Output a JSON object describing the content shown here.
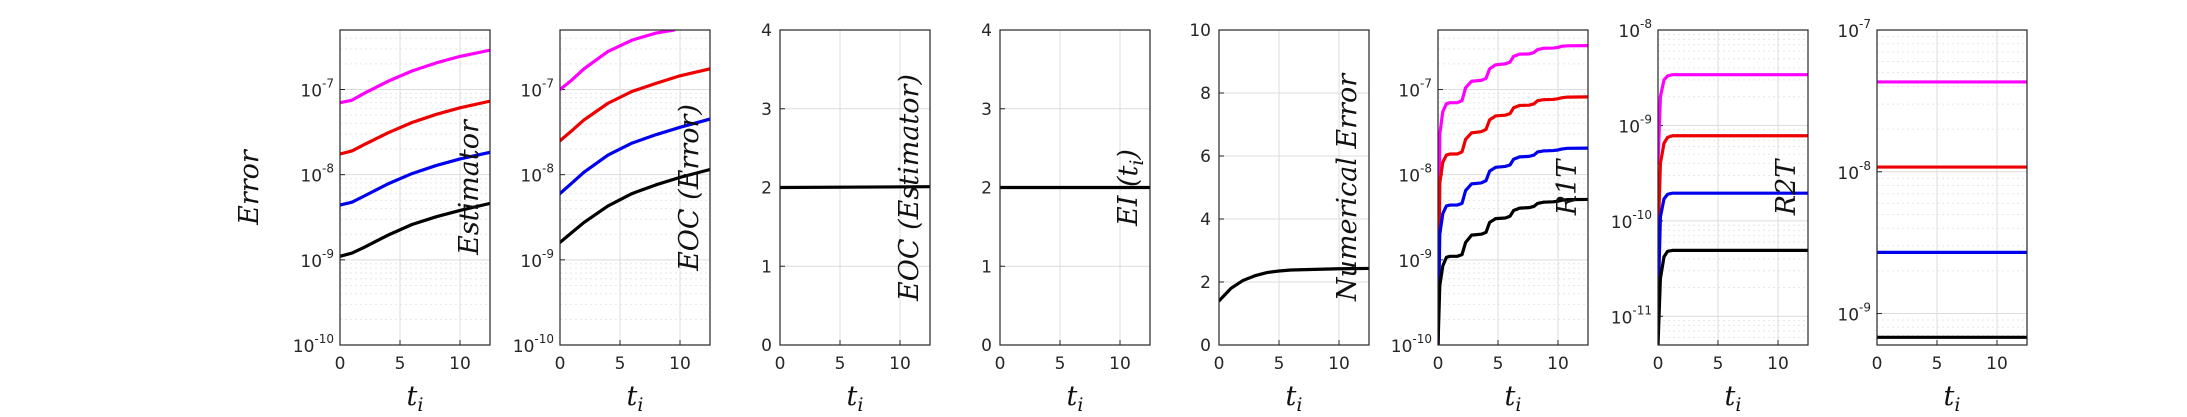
{
  "colors": {
    "magenta": "#ff00ff",
    "red": "#ee0000",
    "blue": "#0000ee",
    "black": "#000000"
  },
  "chart_data": [
    {
      "type": "line",
      "yscale": "log",
      "ylim": [
        1e-10,
        5e-07
      ],
      "xlim": [
        0,
        12.5
      ],
      "xticks": [
        0,
        5,
        10
      ],
      "xlabel": "t",
      "xlabel_sub": "i",
      "ylabel": "Error",
      "yticks": [
        {
          "v": 1e-10,
          "base": "10",
          "exp": "-10"
        },
        {
          "v": 1e-09,
          "base": "10",
          "exp": "-9"
        },
        {
          "v": 1e-08,
          "base": "10",
          "exp": "-8"
        },
        {
          "v": 1e-07,
          "base": "10",
          "exp": "-7"
        }
      ],
      "series": [
        {
          "color": "magenta",
          "x": [
            0,
            1,
            2,
            4,
            6,
            8,
            10,
            12.5
          ],
          "y": [
            7e-08,
            7.5e-08,
            9e-08,
            1.25e-07,
            1.65e-07,
            2.05e-07,
            2.45e-07,
            2.9e-07
          ]
        },
        {
          "color": "red",
          "x": [
            0,
            1,
            2,
            4,
            6,
            8,
            10,
            12.5
          ],
          "y": [
            1.75e-08,
            1.9e-08,
            2.25e-08,
            3.1e-08,
            4.1e-08,
            5.1e-08,
            6.1e-08,
            7.3e-08
          ]
        },
        {
          "color": "blue",
          "x": [
            0,
            1,
            2,
            4,
            6,
            8,
            10,
            12.5
          ],
          "y": [
            4.4e-09,
            4.75e-09,
            5.6e-09,
            7.8e-09,
            1.03e-08,
            1.28e-08,
            1.53e-08,
            1.83e-08
          ]
        },
        {
          "color": "black",
          "x": [
            0,
            1,
            2,
            4,
            6,
            8,
            10,
            12.5
          ],
          "y": [
            1.1e-09,
            1.2e-09,
            1.4e-09,
            1.95e-09,
            2.6e-09,
            3.2e-09,
            3.8e-09,
            4.6e-09
          ]
        }
      ]
    },
    {
      "type": "line",
      "yscale": "log",
      "ylim": [
        1e-10,
        5e-07
      ],
      "xlim": [
        0,
        12.5
      ],
      "xticks": [
        0,
        5,
        10
      ],
      "xlabel": "t",
      "xlabel_sub": "i",
      "ylabel": "Estimator",
      "yticks": [
        {
          "v": 1e-10,
          "base": "10",
          "exp": "-10"
        },
        {
          "v": 1e-09,
          "base": "10",
          "exp": "-9"
        },
        {
          "v": 1e-08,
          "base": "10",
          "exp": "-8"
        },
        {
          "v": 1e-07,
          "base": "10",
          "exp": "-7"
        }
      ],
      "series": [
        {
          "color": "magenta",
          "x": [
            0,
            1,
            2,
            4,
            6,
            8,
            9.5
          ],
          "y": [
            1e-07,
            1.3e-07,
            1.75e-07,
            2.8e-07,
            3.8e-07,
            4.6e-07,
            5e-07
          ]
        },
        {
          "color": "red",
          "x": [
            0,
            1,
            2,
            4,
            6,
            8,
            10,
            12.5
          ],
          "y": [
            2.5e-08,
            3.3e-08,
            4.4e-08,
            6.9e-08,
            9.5e-08,
            1.18e-07,
            1.45e-07,
            1.75e-07
          ]
        },
        {
          "color": "blue",
          "x": [
            0,
            1,
            2,
            4,
            6,
            8,
            10,
            12.5
          ],
          "y": [
            6e-09,
            8e-09,
            1.07e-08,
            1.7e-08,
            2.35e-08,
            2.95e-08,
            3.6e-08,
            4.5e-08
          ]
        },
        {
          "color": "black",
          "x": [
            0,
            1,
            2,
            4,
            6,
            8,
            10,
            12.5
          ],
          "y": [
            1.6e-09,
            2.1e-09,
            2.75e-09,
            4.3e-09,
            6e-09,
            7.6e-09,
            9.3e-09,
            1.15e-08
          ]
        }
      ]
    },
    {
      "type": "line",
      "yscale": "linear",
      "ylim": [
        0,
        4
      ],
      "xlim": [
        0,
        12.5
      ],
      "xticks": [
        0,
        5,
        10
      ],
      "xlabel": "t",
      "xlabel_sub": "i",
      "ylabel": "EOC (Error)",
      "yticks": [
        {
          "v": 0,
          "base": "0"
        },
        {
          "v": 1,
          "base": "1"
        },
        {
          "v": 2,
          "base": "2"
        },
        {
          "v": 3,
          "base": "3"
        },
        {
          "v": 4,
          "base": "4"
        }
      ],
      "series": [
        {
          "color": "black",
          "x": [
            0,
            12.5
          ],
          "y": [
            2.0,
            2.01
          ]
        }
      ]
    },
    {
      "type": "line",
      "yscale": "linear",
      "ylim": [
        0,
        4
      ],
      "xlim": [
        0,
        12.5
      ],
      "xticks": [
        0,
        5,
        10
      ],
      "xlabel": "t",
      "xlabel_sub": "i",
      "ylabel": "EOC (Estimator)",
      "yticks": [
        {
          "v": 0,
          "base": "0"
        },
        {
          "v": 1,
          "base": "1"
        },
        {
          "v": 2,
          "base": "2"
        },
        {
          "v": 3,
          "base": "3"
        },
        {
          "v": 4,
          "base": "4"
        }
      ],
      "series": [
        {
          "color": "black",
          "x": [
            0,
            12.5
          ],
          "y": [
            2.0,
            2.0
          ]
        }
      ]
    },
    {
      "type": "line",
      "yscale": "linear",
      "ylim": [
        0,
        10
      ],
      "xlim": [
        0,
        12.5
      ],
      "xticks": [
        0,
        5,
        10
      ],
      "xlabel": "t",
      "xlabel_sub": "i",
      "ylabel": "EI (t",
      "ylabel_sub": "i",
      "ylabel_tail": ")",
      "yticks": [
        {
          "v": 0,
          "base": "0"
        },
        {
          "v": 2,
          "base": "2"
        },
        {
          "v": 4,
          "base": "4"
        },
        {
          "v": 6,
          "base": "6"
        },
        {
          "v": 8,
          "base": "8"
        },
        {
          "v": 10,
          "base": "10"
        }
      ],
      "series": [
        {
          "color": "black",
          "x": [
            0,
            0.5,
            1,
            2,
            3,
            4,
            5,
            6,
            8,
            10,
            12.5
          ],
          "y": [
            1.4,
            1.6,
            1.8,
            2.05,
            2.2,
            2.3,
            2.35,
            2.38,
            2.4,
            2.42,
            2.43
          ]
        }
      ]
    },
    {
      "type": "line",
      "yscale": "log",
      "ylim": [
        1e-10,
        5e-07
      ],
      "xlim": [
        0,
        12.5
      ],
      "xticks": [
        0,
        5,
        10
      ],
      "xlabel": "t",
      "xlabel_sub": "i",
      "ylabel": "Numerical Error",
      "yticks": [
        {
          "v": 1e-10,
          "base": "10",
          "exp": "-10"
        },
        {
          "v": 1e-09,
          "base": "10",
          "exp": "-9"
        },
        {
          "v": 1e-08,
          "base": "10",
          "exp": "-8"
        },
        {
          "v": 1e-07,
          "base": "10",
          "exp": "-7"
        }
      ],
      "series": [
        {
          "color": "magenta",
          "x": [
            0,
            0.15,
            0.4,
            0.7,
            1,
            1.6,
            2,
            2.3,
            2.8,
            3.6,
            4,
            4.3,
            4.8,
            5.6,
            6,
            6.3,
            6.8,
            7.6,
            8,
            8.3,
            8.8,
            9.6,
            10,
            10.3,
            10.8,
            12.5
          ],
          "y": [
            1e-10,
            3e-08,
            5.5e-08,
            6.8e-08,
            7e-08,
            7e-08,
            7.4e-08,
            1.05e-07,
            1.25e-07,
            1.28e-07,
            1.35e-07,
            1.75e-07,
            1.95e-07,
            2e-07,
            2.1e-07,
            2.45e-07,
            2.6e-07,
            2.62e-07,
            2.72e-07,
            2.95e-07,
            3.05e-07,
            3.07e-07,
            3.12e-07,
            3.22e-07,
            3.26e-07,
            3.28e-07
          ]
        },
        {
          "color": "red",
          "x": [
            0,
            0.15,
            0.4,
            0.7,
            1,
            1.6,
            2,
            2.3,
            2.8,
            3.6,
            4,
            4.3,
            4.8,
            5.6,
            6,
            6.3,
            6.8,
            7.6,
            8,
            8.3,
            8.8,
            9.6,
            10,
            10.3,
            10.8,
            12.5
          ],
          "y": [
            1e-10,
            8e-09,
            1.4e-08,
            1.7e-08,
            1.75e-08,
            1.75e-08,
            1.85e-08,
            2.6e-08,
            3.1e-08,
            3.2e-08,
            3.4e-08,
            4.4e-08,
            4.9e-08,
            5e-08,
            5.2e-08,
            6.1e-08,
            6.5e-08,
            6.55e-08,
            6.8e-08,
            7.4e-08,
            7.6e-08,
            7.65e-08,
            7.8e-08,
            8e-08,
            8.15e-08,
            8.2e-08
          ]
        },
        {
          "color": "blue",
          "x": [
            0,
            0.15,
            0.4,
            0.7,
            1,
            1.6,
            2,
            2.3,
            2.8,
            3.6,
            4,
            4.3,
            4.8,
            5.6,
            6,
            6.3,
            6.8,
            7.6,
            8,
            8.3,
            8.8,
            9.6,
            10,
            10.3,
            10.8,
            12.5
          ],
          "y": [
            1e-10,
            2e-09,
            3.5e-09,
            4.3e-09,
            4.4e-09,
            4.4e-09,
            4.6e-09,
            6.5e-09,
            7.8e-09,
            8e-09,
            8.5e-09,
            1.1e-08,
            1.22e-08,
            1.25e-08,
            1.3e-08,
            1.52e-08,
            1.62e-08,
            1.64e-08,
            1.7e-08,
            1.85e-08,
            1.9e-08,
            1.92e-08,
            1.95e-08,
            2e-08,
            2.04e-08,
            2.05e-08
          ]
        },
        {
          "color": "black",
          "x": [
            0,
            0.15,
            0.4,
            0.7,
            1,
            1.6,
            2,
            2.3,
            2.8,
            3.6,
            4,
            4.3,
            4.8,
            5.6,
            6,
            6.3,
            6.8,
            7.6,
            8,
            8.3,
            8.8,
            9.6,
            10,
            10.3,
            10.8,
            12.5
          ],
          "y": [
            1e-10,
            5e-10,
            8.5e-10,
            1.07e-09,
            1.1e-09,
            1.1e-09,
            1.15e-09,
            1.6e-09,
            1.95e-09,
            2e-09,
            2.1e-09,
            2.75e-09,
            3.05e-09,
            3.1e-09,
            3.25e-09,
            3.8e-09,
            4.05e-09,
            4.1e-09,
            4.25e-09,
            4.6e-09,
            4.75e-09,
            4.8e-09,
            4.88e-09,
            5e-09,
            5.1e-09,
            5.12e-09
          ]
        }
      ]
    },
    {
      "type": "line",
      "yscale": "log",
      "ylim": [
        5e-12,
        1e-08
      ],
      "xlim": [
        0,
        12.5
      ],
      "xticks": [
        0,
        5,
        10
      ],
      "xlabel": "t",
      "xlabel_sub": "i",
      "ylabel": "R1T",
      "yticks": [
        {
          "v": 1e-11,
          "base": "10",
          "exp": "-11"
        },
        {
          "v": 1e-10,
          "base": "10",
          "exp": "-10"
        },
        {
          "v": 1e-09,
          "base": "10",
          "exp": "-9"
        },
        {
          "v": 1e-08,
          "base": "10",
          "exp": "-8"
        }
      ],
      "series": [
        {
          "color": "magenta",
          "x": [
            0,
            0.2,
            0.5,
            0.8,
            1.2,
            2,
            12.5
          ],
          "y": [
            4e-10,
            2e-09,
            3e-09,
            3.3e-09,
            3.4e-09,
            3.4e-09,
            3.4e-09
          ]
        },
        {
          "color": "red",
          "x": [
            0,
            0.2,
            0.5,
            0.8,
            1.2,
            2,
            12.5
          ],
          "y": [
            6e-11,
            4e-10,
            6.5e-10,
            7.5e-10,
            7.8e-10,
            7.8e-10,
            7.8e-10
          ]
        },
        {
          "color": "blue",
          "x": [
            0,
            0.2,
            0.5,
            0.8,
            1.2,
            2,
            12.5
          ],
          "y": [
            1.2e-11,
            1.1e-10,
            1.7e-10,
            1.9e-10,
            1.95e-10,
            1.95e-10,
            1.95e-10
          ]
        },
        {
          "color": "black",
          "x": [
            0,
            0.2,
            0.5,
            0.8,
            1.2,
            2,
            12.5
          ],
          "y": [
            5e-12,
            2.5e-11,
            4.2e-11,
            4.8e-11,
            4.9e-11,
            4.9e-11,
            4.9e-11
          ]
        }
      ]
    },
    {
      "type": "line",
      "yscale": "log",
      "ylim": [
        6e-10,
        1e-07
      ],
      "xlim": [
        0,
        12.5
      ],
      "xticks": [
        0,
        5,
        10
      ],
      "xlabel": "t",
      "xlabel_sub": "i",
      "ylabel": "R2T",
      "yticks": [
        {
          "v": 1e-09,
          "base": "10",
          "exp": "-9"
        },
        {
          "v": 1e-08,
          "base": "10",
          "exp": "-8"
        },
        {
          "v": 1e-07,
          "base": "10",
          "exp": "-7"
        }
      ],
      "series": [
        {
          "color": "magenta",
          "x": [
            0,
            12.5
          ],
          "y": [
            4.3e-08,
            4.3e-08
          ]
        },
        {
          "color": "red",
          "x": [
            0,
            12.5
          ],
          "y": [
            1.08e-08,
            1.08e-08
          ]
        },
        {
          "color": "blue",
          "x": [
            0,
            12.5
          ],
          "y": [
            2.7e-09,
            2.7e-09
          ]
        },
        {
          "color": "black",
          "x": [
            0,
            12.5
          ],
          "y": [
            6.8e-10,
            6.8e-10
          ]
        }
      ]
    }
  ]
}
